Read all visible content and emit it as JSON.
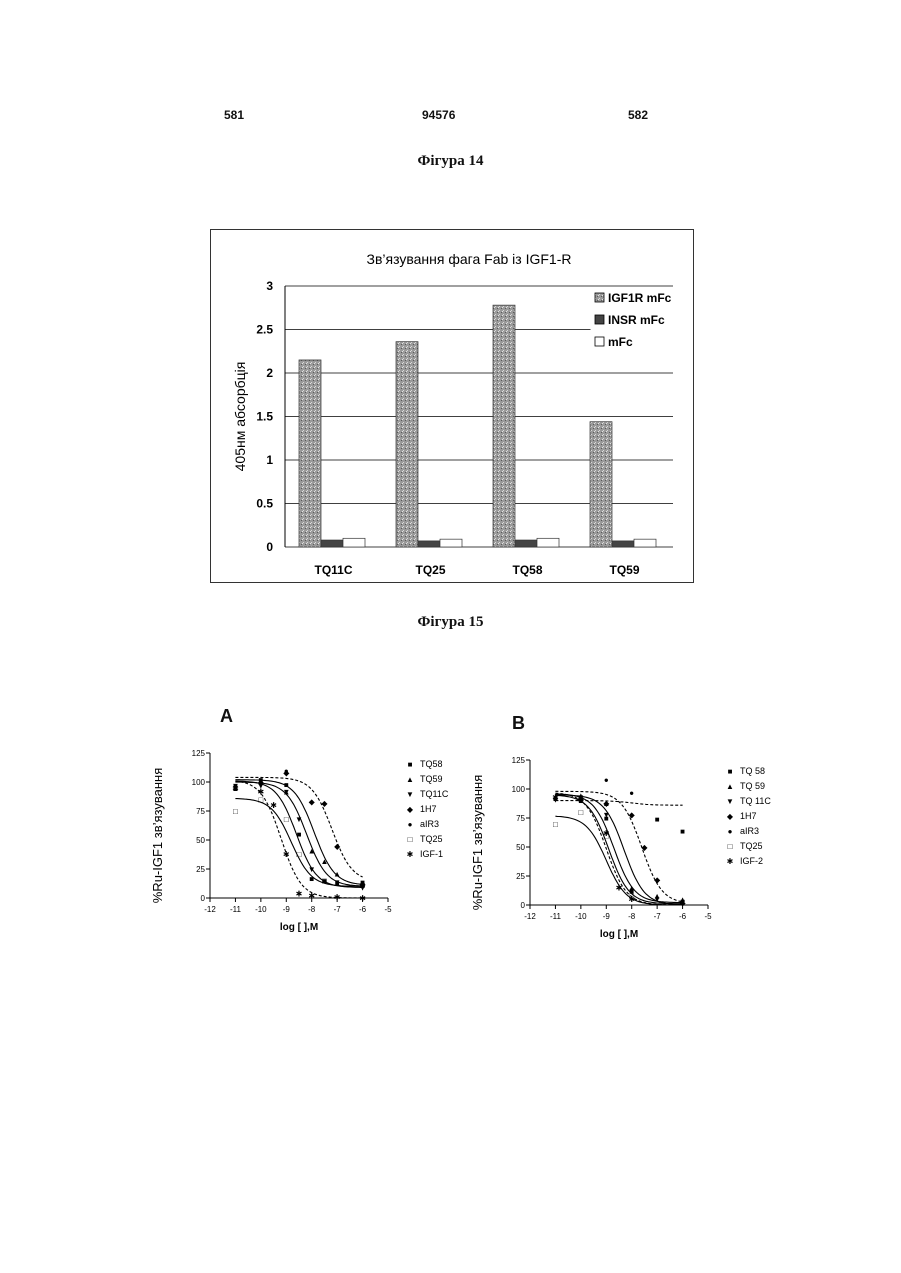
{
  "header": {
    "left_page": "581",
    "center_number": "94576",
    "right_page": "582"
  },
  "figure14": {
    "caption": "Фігура 14",
    "chart_data": {
      "type": "bar",
      "title": "Зв’язування фага Fab із IGF1-R",
      "ylabel": "405нм абсорбція",
      "xlabel": "",
      "categories": [
        "TQ11C",
        "TQ25",
        "TQ58",
        "TQ59"
      ],
      "ylim": [
        0,
        3
      ],
      "yticks": [
        "0",
        "0.5",
        "1",
        "1.5",
        "2",
        "2.5",
        "3"
      ],
      "grid": true,
      "legend_position": "top-right",
      "series": [
        {
          "name": "IGF1R mFc",
          "values": [
            2.15,
            2.36,
            2.78,
            1.44
          ],
          "fill": "#9a9a9a"
        },
        {
          "name": "INSR mFc",
          "values": [
            0.08,
            0.07,
            0.08,
            0.07
          ],
          "fill": "#444444"
        },
        {
          "name": "mFc",
          "values": [
            0.1,
            0.09,
            0.1,
            0.09
          ],
          "fill": "#ffffff"
        }
      ]
    }
  },
  "figure15": {
    "caption": "Фігура 15",
    "panels": [
      {
        "letter": "A",
        "chart_data": {
          "type": "line",
          "xlabel": "log [ ],M",
          "ylabel": "%Ru-IGF1 зв’язування",
          "xlim": [
            -12,
            -5
          ],
          "ylim": [
            0,
            125
          ],
          "xticks": [
            "-12",
            "-11",
            "-10",
            "-9",
            "-8",
            "-7",
            "-6",
            "-5"
          ],
          "yticks": [
            "0",
            "25",
            "50",
            "75",
            "100",
            "125"
          ],
          "legend_position": "right",
          "series": [
            {
              "name": "TQ58",
              "marker": "■",
              "curve": {
                "top": 100,
                "bottom": 10,
                "ic50_log": -8.2,
                "dashed": false
              },
              "x": [
                -11,
                -10,
                -9,
                -8.5,
                -8,
                -7.5,
                -7,
                -6
              ],
              "y": [
                96,
                102,
                98,
                55,
                17,
                15,
                13,
                14
              ]
            },
            {
              "name": "TQ59",
              "marker": "▲",
              "curve": {
                "top": 102,
                "bottom": 11,
                "ic50_log": -7.9,
                "dashed": false
              },
              "x": [
                -11,
                -10,
                -9,
                -8,
                -7.5,
                -7,
                -6
              ],
              "y": [
                95,
                100,
                92,
                41,
                32,
                21,
                12
              ]
            },
            {
              "name": "TQ11C",
              "marker": "▼",
              "curve": {
                "top": 101,
                "bottom": 9,
                "ic50_log": -8.6,
                "dashed": false
              },
              "x": [
                -11,
                -10,
                -9,
                -8.5,
                -8,
                -7,
                -6
              ],
              "y": [
                97,
                97,
                92,
                68,
                25,
                14,
                9
              ]
            },
            {
              "name": "1H7",
              "marker": "◆",
              "curve": {
                "top": 104,
                "bottom": 14,
                "ic50_log": -7.2,
                "dashed": true
              },
              "x": [
                -10,
                -9,
                -8,
                -7.5,
                -7,
                -6
              ],
              "y": [
                100,
                108,
                83,
                82,
                45,
                12
              ]
            },
            {
              "name": "aIR3",
              "marker": "●",
              "curve": null,
              "x": [
                -9
              ],
              "y": [
                110
              ]
            },
            {
              "name": "TQ25",
              "marker": "□",
              "curve": {
                "top": 86,
                "bottom": 10,
                "ic50_log": -8.8,
                "dashed": false
              },
              "x": [
                -11,
                -10,
                -9,
                -8.5,
                -7.5,
                -6
              ],
              "y": [
                75,
                85,
                68,
                38,
                15,
                11
              ]
            },
            {
              "name": "IGF-1",
              "marker": "✱",
              "curve": {
                "top": 102,
                "bottom": 0,
                "ic50_log": -9.2,
                "dashed": true
              },
              "x": [
                -11,
                -10,
                -9.5,
                -9,
                -8.5,
                -8,
                -7,
                -6
              ],
              "y": [
                95,
                92,
                80,
                38,
                4,
                2,
                1,
                0
              ]
            }
          ]
        }
      },
      {
        "letter": "B",
        "chart_data": {
          "type": "line",
          "xlabel": "log [ ],M",
          "ylabel": "%Ru-IGF1 зв’язування",
          "xlim": [
            -12,
            -5
          ],
          "ylim": [
            0,
            125
          ],
          "xticks": [
            "-12",
            "-11",
            "-10",
            "-9",
            "-8",
            "-7",
            "-6",
            "-5"
          ],
          "yticks": [
            "0",
            "25",
            "50",
            "75",
            "100",
            "125"
          ],
          "legend_position": "right",
          "series": [
            {
              "name": "TQ 58",
              "marker": "■",
              "curve": {
                "top": 95,
                "bottom": 0,
                "ic50_log": -8.3,
                "dashed": false
              },
              "x": [
                -11,
                -10,
                -9,
                -8,
                -7,
                -6
              ],
              "y": [
                92,
                90,
                75,
                12,
                74,
                64
              ]
            },
            {
              "name": "TQ 59",
              "marker": "▲",
              "curve": {
                "top": 96,
                "bottom": 2,
                "ic50_log": -8.7,
                "dashed": false
              },
              "x": [
                -11,
                -10,
                -9,
                -8,
                -7,
                -6
              ],
              "y": [
                93,
                95,
                88,
                15,
                8,
                5
              ]
            },
            {
              "name": "TQ 11C",
              "marker": "▼",
              "curve": {
                "top": 95,
                "bottom": 1,
                "ic50_log": -8.9,
                "dashed": false
              },
              "x": [
                -11,
                -10,
                -9,
                -8,
                -7,
                -6
              ],
              "y": [
                91,
                93,
                78,
                12,
                5,
                3
              ]
            },
            {
              "name": "1H7",
              "marker": "◆",
              "curve": {
                "top": 98,
                "bottom": 1,
                "ic50_log": -7.6,
                "dashed": true
              },
              "x": [
                -10,
                -9,
                -8,
                -7.5,
                -7,
                -6
              ],
              "y": [
                92,
                88,
                78,
                50,
                22,
                2
              ]
            },
            {
              "name": "aIR3",
              "marker": "●",
              "curve": {
                "top": 90,
                "bottom": 86,
                "ic50_log": -8,
                "dashed": true
              },
              "x": [
                -11,
                -9,
                -8
              ],
              "y": [
                92,
                108,
                97
              ]
            },
            {
              "name": "TQ25",
              "marker": "□",
              "curve": {
                "top": 77,
                "bottom": 0,
                "ic50_log": -9,
                "dashed": false
              },
              "x": [
                -11,
                -10,
                -9,
                -8
              ],
              "y": [
                70,
                80,
                60,
                8
              ]
            },
            {
              "name": "IGF-2",
              "marker": "✱",
              "curve": {
                "top": 97,
                "bottom": 0,
                "ic50_log": -9,
                "dashed": true
              },
              "x": [
                -11,
                -10,
                -9,
                -8.5,
                -8
              ],
              "y": [
                93,
                91,
                62,
                15,
                5
              ]
            }
          ]
        }
      }
    ]
  }
}
